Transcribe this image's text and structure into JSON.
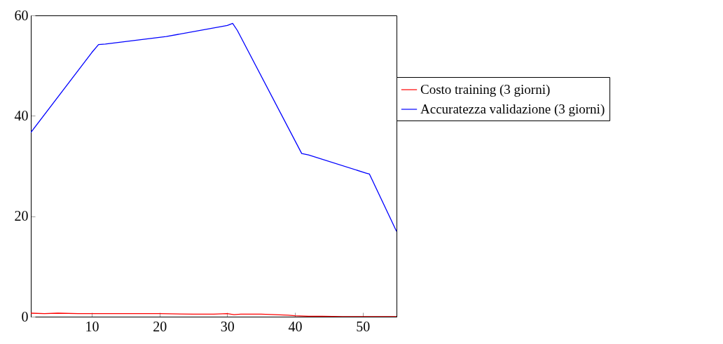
{
  "chart_data": {
    "type": "line",
    "xlim": [
      1,
      55
    ],
    "ylim": [
      0,
      60
    ],
    "xticks": [
      10,
      20,
      30,
      40,
      50
    ],
    "yticks": [
      0,
      20,
      40,
      60
    ],
    "grid": false,
    "legend": "right",
    "marker": "none",
    "line_style": "solid",
    "series": [
      {
        "name": "Costo training (3 giorni)",
        "color": "#ff0000",
        "x": [
          1,
          3,
          5,
          8,
          10,
          15,
          20,
          25,
          28,
          30,
          31,
          32,
          35,
          37,
          39,
          40,
          42,
          44,
          47,
          50,
          55
        ],
        "values": [
          0.7,
          0.6,
          0.7,
          0.6,
          0.6,
          0.6,
          0.6,
          0.5,
          0.5,
          0.6,
          0.4,
          0.5,
          0.5,
          0.4,
          0.3,
          0.2,
          0.1,
          0.1,
          0,
          0,
          0
        ]
      },
      {
        "name": "Accuratezza validazione (3 giorni)",
        "color": "#0000ff",
        "x": [
          1,
          10,
          11,
          12,
          21,
          30,
          30.8,
          31.5,
          41,
          42,
          50.5,
          51,
          55
        ],
        "values": [
          36.7,
          52.6,
          54.2,
          54.3,
          55.8,
          58,
          58.4,
          57,
          32.5,
          32.2,
          28.6,
          28.4,
          17
        ]
      }
    ]
  }
}
